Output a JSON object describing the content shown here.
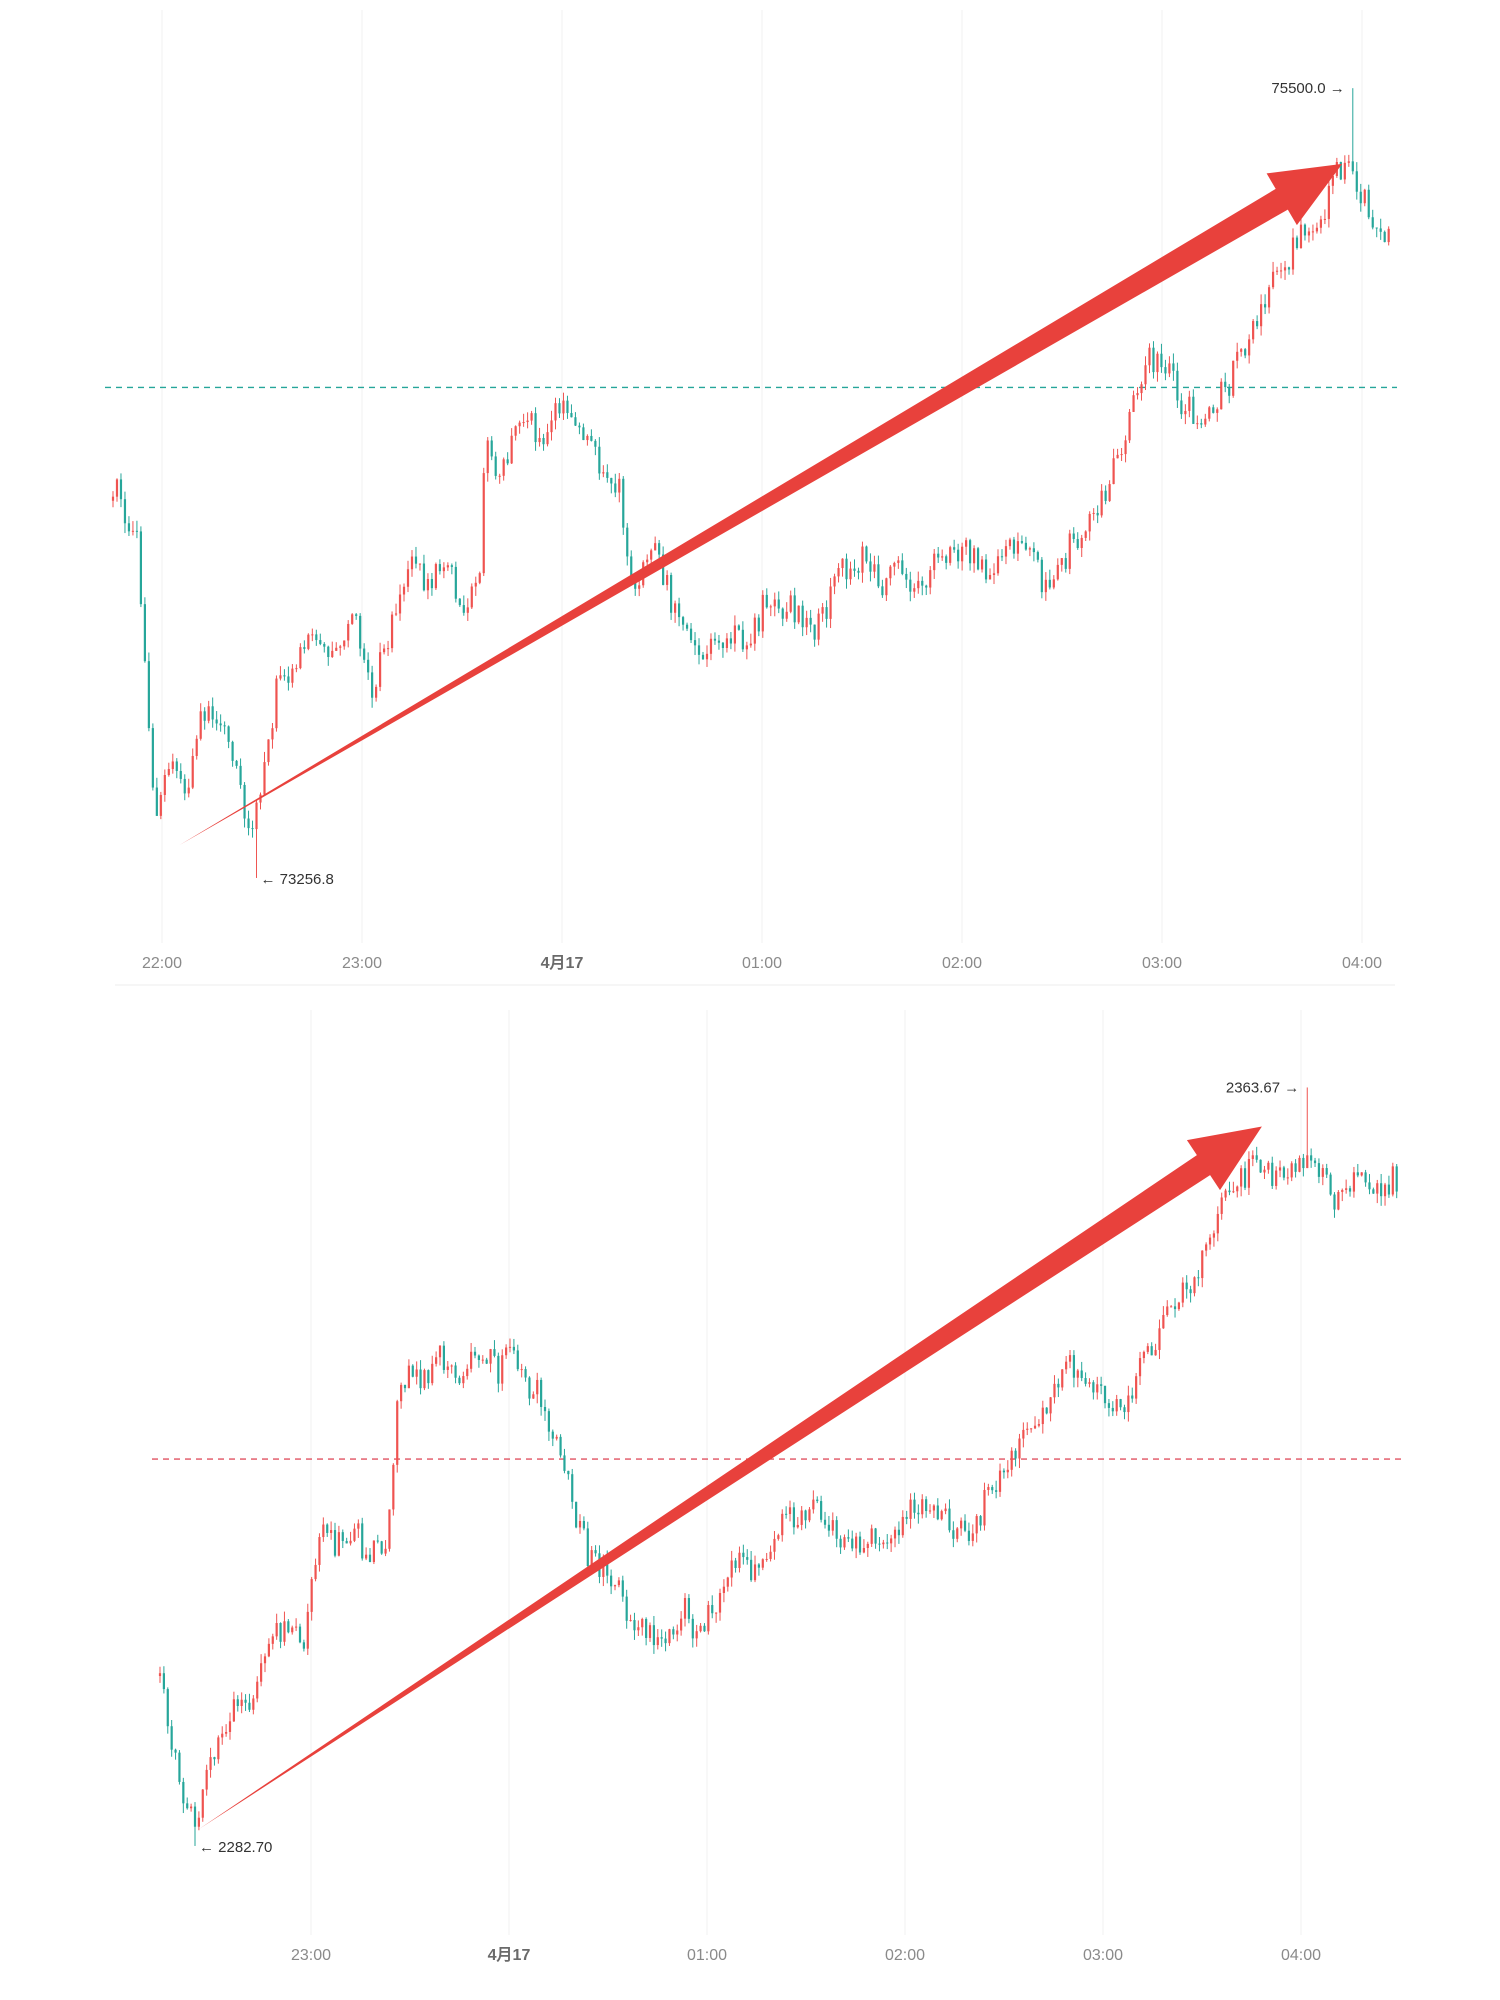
{
  "colors": {
    "up": "#ef5350",
    "down": "#26a69a",
    "arrow": "#e8413c",
    "grid": "#f0f0f0",
    "ref_line_top": "#26a69a",
    "ref_line_bottom": "#e05260"
  },
  "icons": {
    "price_marker_left": "←",
    "price_marker_right": "→"
  },
  "chart_data": [
    {
      "type": "candlestick",
      "x_ticks": [
        "22:00",
        "23:00",
        "4月17",
        "01:00",
        "02:00",
        "03:00",
        "04:00"
      ],
      "x_range": [
        "21:45",
        "04:10"
      ],
      "ylim": [
        73180,
        75580
      ],
      "reference_line": 74650,
      "high_label": "75500.0",
      "low_label": "73256.8",
      "high": 75500.0,
      "low": 73256.8,
      "trend_arrow": {
        "start_time": "22:05",
        "start_value": 73350,
        "end_time": "03:55",
        "end_value": 75285
      },
      "path": [
        [
          "21:45",
          74380
        ],
        [
          "21:52",
          74230
        ],
        [
          "21:58",
          73420
        ],
        [
          "22:02",
          73560
        ],
        [
          "22:08",
          73510
        ],
        [
          "22:12",
          73740
        ],
        [
          "22:17",
          73700
        ],
        [
          "22:22",
          73550
        ],
        [
          "22:26",
          73400
        ],
        [
          "22:30",
          73520
        ],
        [
          "22:34",
          73780
        ],
        [
          "22:40",
          73850
        ],
        [
          "22:45",
          73940
        ],
        [
          "22:52",
          73920
        ],
        [
          "22:58",
          74000
        ],
        [
          "23:03",
          73800
        ],
        [
          "23:08",
          73940
        ],
        [
          "23:14",
          74150
        ],
        [
          "23:20",
          74100
        ],
        [
          "23:26",
          74140
        ],
        [
          "23:30",
          74030
        ],
        [
          "23:35",
          74070
        ],
        [
          "23:37",
          74500
        ],
        [
          "23:42",
          74400
        ],
        [
          "23:48",
          74560
        ],
        [
          "23:54",
          74520
        ],
        [
          "00:00",
          74590
        ],
        [
          "00:04",
          74540
        ],
        [
          "00:10",
          74460
        ],
        [
          "00:17",
          74380
        ],
        [
          "00:22",
          74080
        ],
        [
          "00:27",
          74200
        ],
        [
          "00:33",
          74050
        ],
        [
          "00:38",
          73950
        ],
        [
          "00:44",
          73880
        ],
        [
          "00:50",
          73970
        ],
        [
          "00:56",
          73920
        ],
        [
          "01:02",
          74050
        ],
        [
          "01:10",
          74020
        ],
        [
          "01:16",
          73940
        ],
        [
          "01:23",
          74110
        ],
        [
          "01:30",
          74170
        ],
        [
          "01:36",
          74080
        ],
        [
          "01:42",
          74140
        ],
        [
          "01:48",
          74080
        ],
        [
          "01:55",
          74180
        ],
        [
          "02:02",
          74200
        ],
        [
          "02:08",
          74110
        ],
        [
          "02:15",
          74180
        ],
        [
          "02:20",
          74190
        ],
        [
          "02:26",
          74080
        ],
        [
          "02:32",
          74180
        ],
        [
          "02:38",
          74270
        ],
        [
          "02:43",
          74320
        ],
        [
          "02:48",
          74470
        ],
        [
          "02:52",
          74580
        ],
        [
          "02:57",
          74740
        ],
        [
          "03:02",
          74700
        ],
        [
          "03:06",
          74620
        ],
        [
          "03:12",
          74560
        ],
        [
          "03:17",
          74610
        ],
        [
          "03:22",
          74680
        ],
        [
          "03:28",
          74840
        ],
        [
          "03:33",
          74920
        ],
        [
          "03:38",
          75010
        ],
        [
          "03:43",
          75080
        ],
        [
          "03:48",
          75120
        ],
        [
          "03:52",
          75230
        ],
        [
          "03:57",
          75300
        ],
        [
          "04:02",
          75180
        ],
        [
          "04:06",
          75110
        ],
        [
          "04:10",
          75090
        ]
      ]
    },
    {
      "type": "candlestick",
      "x_ticks": [
        "23:00",
        "4月17",
        "01:00",
        "02:00",
        "03:00",
        "04:00"
      ],
      "x_range": [
        "22:08",
        "04:30"
      ],
      "ylim": [
        2278,
        2365
      ],
      "reference_line": 2324,
      "high_label": "2363.67",
      "low_label": "2282.70",
      "high": 2363.67,
      "low": 2282.7,
      "trend_arrow": {
        "start_time": "22:20",
        "start_value": 2284.5,
        "end_time": "03:48",
        "end_value": 2359.5
      },
      "path": [
        [
          "22:08",
          2301
        ],
        [
          "22:12",
          2293
        ],
        [
          "22:16",
          2287
        ],
        [
          "22:19",
          2285
        ],
        [
          "22:24",
          2292
        ],
        [
          "22:30",
          2297
        ],
        [
          "22:35",
          2298
        ],
        [
          "22:42",
          2304
        ],
        [
          "22:48",
          2307
        ],
        [
          "22:52",
          2304
        ],
        [
          "22:57",
          2316
        ],
        [
          "23:02",
          2315
        ],
        [
          "23:08",
          2317
        ],
        [
          "23:12",
          2313
        ],
        [
          "23:18",
          2316
        ],
        [
          "23:22",
          2333
        ],
        [
          "23:28",
          2332
        ],
        [
          "23:35",
          2335
        ],
        [
          "23:42",
          2333
        ],
        [
          "23:48",
          2336
        ],
        [
          "23:52",
          2333
        ],
        [
          "23:56",
          2336
        ],
        [
          "24:00",
          2332
        ],
        [
          "00:05",
          2331
        ],
        [
          "00:10",
          2326
        ],
        [
          "00:14",
          2321
        ],
        [
          "00:20",
          2314
        ],
        [
          "00:25",
          2312
        ],
        [
          "00:30",
          2310
        ],
        [
          "00:34",
          2306
        ],
        [
          "00:40",
          2305
        ],
        [
          "00:45",
          2306
        ],
        [
          "00:50",
          2308
        ],
        [
          "00:54",
          2305
        ],
        [
          "01:00",
          2309
        ],
        [
          "01:06",
          2313
        ],
        [
          "01:12",
          2312
        ],
        [
          "01:18",
          2316
        ],
        [
          "01:24",
          2318
        ],
        [
          "01:30",
          2319
        ],
        [
          "01:36",
          2317
        ],
        [
          "01:42",
          2314
        ],
        [
          "01:48",
          2316
        ],
        [
          "01:54",
          2315
        ],
        [
          "02:00",
          2319
        ],
        [
          "02:06",
          2318
        ],
        [
          "02:12",
          2317
        ],
        [
          "02:18",
          2315
        ],
        [
          "02:24",
          2321
        ],
        [
          "02:30",
          2324
        ],
        [
          "02:36",
          2328
        ],
        [
          "02:42",
          2330
        ],
        [
          "02:48",
          2335
        ],
        [
          "02:53",
          2332
        ],
        [
          "02:58",
          2331
        ],
        [
          "03:04",
          2329
        ],
        [
          "03:10",
          2333
        ],
        [
          "03:16",
          2337
        ],
        [
          "03:22",
          2341
        ],
        [
          "03:28",
          2344
        ],
        [
          "03:34",
          2350
        ],
        [
          "03:40",
          2353
        ],
        [
          "03:46",
          2356
        ],
        [
          "03:52",
          2354
        ],
        [
          "03:58",
          2355
        ],
        [
          "04:04",
          2355
        ],
        [
          "04:10",
          2352
        ],
        [
          "04:16",
          2354
        ],
        [
          "04:22",
          2353
        ],
        [
          "04:30",
          2354
        ]
      ]
    }
  ]
}
